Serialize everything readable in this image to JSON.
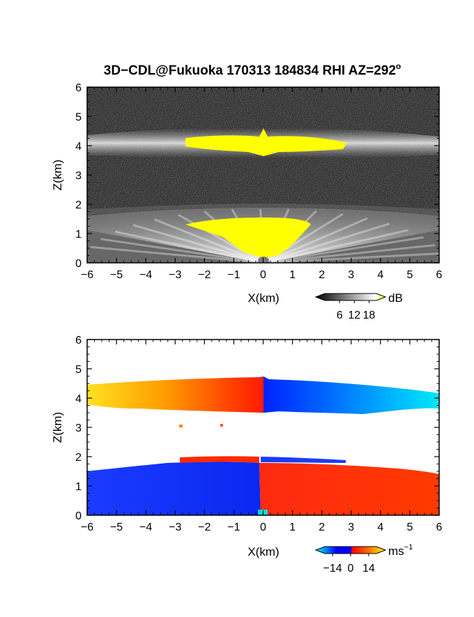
{
  "title": "3D−CDL@Fukuoka 170313 184834 RHI AZ=292",
  "title_degree_mark": "o",
  "chart_data": [
    {
      "type": "heatmap",
      "name": "reflectivity-panel",
      "xlabel": "X(km)",
      "ylabel": "Z(km)",
      "xlim": [
        -6,
        6
      ],
      "ylim": [
        0,
        6
      ],
      "xticks": [
        "−6",
        "−5",
        "−4",
        "−3",
        "−2",
        "−1",
        "0",
        "1",
        "2",
        "3",
        "4",
        "5",
        "6"
      ],
      "yticks": [
        "0",
        "1",
        "2",
        "3",
        "4",
        "5",
        "6"
      ],
      "colorscale": [
        "#000000",
        "#ffffff",
        "#ffff00"
      ],
      "colorbar": {
        "unit": "dB",
        "unit_super": "",
        "ticks": [
          "6",
          "12",
          "18"
        ],
        "range": [
          0,
          21
        ]
      },
      "layers": [
        {
          "z_center_km": 4.0,
          "thickness_km": 0.45,
          "x_range_km": [
            -6,
            6
          ],
          "level": "bright"
        },
        {
          "z_center_km": 4.05,
          "thickness_km": 0.3,
          "x_range_km": [
            -2.7,
            2.8
          ],
          "level": "saturated"
        },
        {
          "z_center_km": 1.0,
          "thickness_km": 1.6,
          "x_range_km": [
            -6,
            6
          ],
          "level": "moderate"
        },
        {
          "z_center_km": 1.0,
          "thickness_km": 0.8,
          "x_range_km": [
            -2.6,
            1.7
          ],
          "level": "saturated"
        }
      ]
    },
    {
      "type": "heatmap",
      "name": "doppler-velocity-panel",
      "xlabel": "X(km)",
      "ylabel": "Z(km)",
      "xlim": [
        -6,
        6
      ],
      "ylim": [
        0,
        6
      ],
      "xticks": [
        "−6",
        "−5",
        "−4",
        "−3",
        "−2",
        "−1",
        "0",
        "1",
        "2",
        "3",
        "4",
        "5",
        "6"
      ],
      "yticks": [
        "0",
        "1",
        "2",
        "3",
        "4",
        "5",
        "6"
      ],
      "colorscale": [
        "#00ffff",
        "#0000ff",
        "#ff0000",
        "#ffff00"
      ],
      "colorbar": {
        "unit": "ms",
        "unit_super": "−1",
        "ticks": [
          "−14",
          "0",
          "14"
        ],
        "range": [
          -20,
          20
        ]
      },
      "layers": [
        {
          "z_range_km": [
            3.6,
            4.6
          ],
          "x_range_km": [
            -6,
            0
          ],
          "velocity_ms": [
            14,
            4
          ]
        },
        {
          "z_range_km": [
            3.6,
            4.6
          ],
          "x_range_km": [
            0,
            6
          ],
          "velocity_ms": [
            -4,
            -14
          ]
        },
        {
          "z_range_km": [
            0.0,
            1.6
          ],
          "x_range_km": [
            -6,
            0
          ],
          "velocity_ms": [
            -6,
            -6
          ]
        },
        {
          "z_range_km": [
            0.0,
            1.6
          ],
          "x_range_km": [
            0,
            6
          ],
          "velocity_ms": [
            7,
            7
          ]
        }
      ]
    }
  ]
}
